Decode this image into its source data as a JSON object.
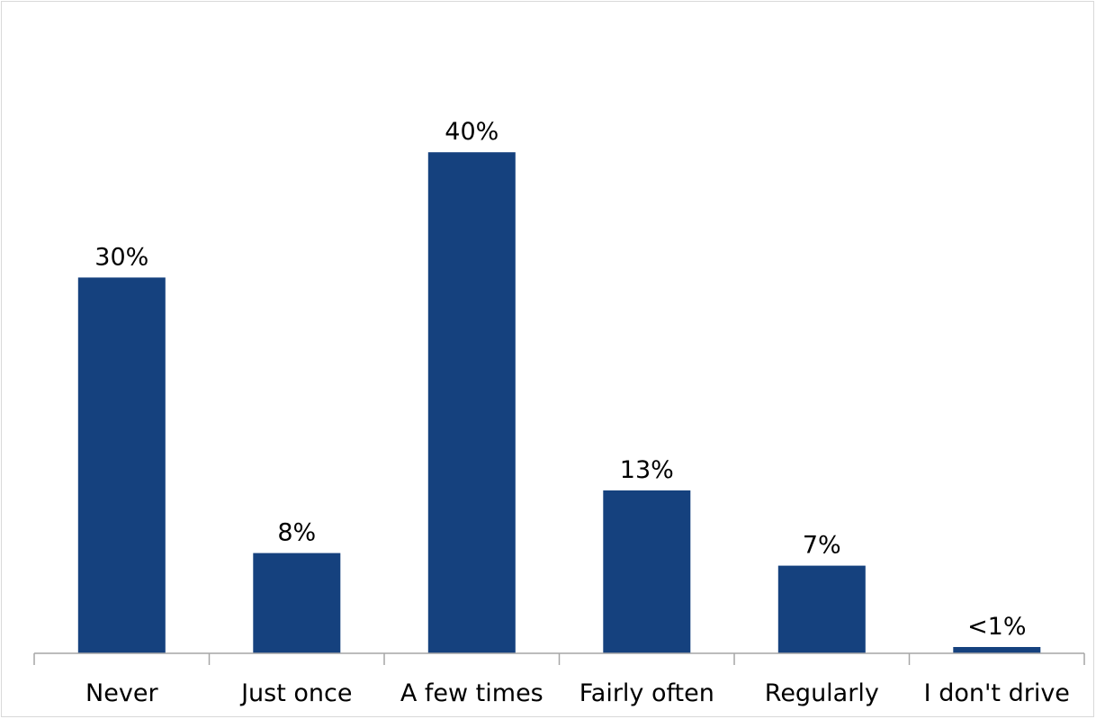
{
  "chart_data": {
    "type": "bar",
    "categories": [
      "Never",
      "Just once",
      "A few times",
      "Fairly often",
      "Regularly",
      "I don't drive"
    ],
    "values": [
      30,
      8,
      40,
      13,
      7,
      0.5
    ],
    "data_labels": [
      "30%",
      "8%",
      "40%",
      "13%",
      "7%",
      "<1%"
    ],
    "title": "",
    "xlabel": "",
    "ylabel": "",
    "ylim": [
      0,
      50
    ],
    "grid": false,
    "legend": "none",
    "bar_color": "#15417e",
    "axis_color": "#a6a6a6"
  }
}
